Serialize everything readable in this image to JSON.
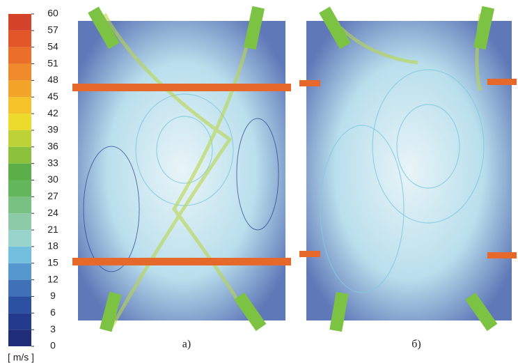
{
  "colorbar": {
    "ticks": [
      0,
      3,
      6,
      9,
      12,
      15,
      18,
      21,
      24,
      27,
      30,
      33,
      36,
      39,
      42,
      45,
      48,
      51,
      54,
      57,
      60
    ],
    "colors": [
      "#1f2c78",
      "#243a8c",
      "#2c50a2",
      "#3f70b8",
      "#5598cf",
      "#72bfe0",
      "#98d3cc",
      "#8ccaa8",
      "#78c182",
      "#64b65c",
      "#5caf48",
      "#8cc13e",
      "#bdd236",
      "#ecdb2c",
      "#f6c22a",
      "#f3a52a",
      "#ef8b2b",
      "#ea702a",
      "#e3562a",
      "#d6432b"
    ],
    "unit": "[ m/s ]"
  },
  "panels": [
    {
      "label": "а)"
    },
    {
      "label": "б)"
    }
  ]
}
